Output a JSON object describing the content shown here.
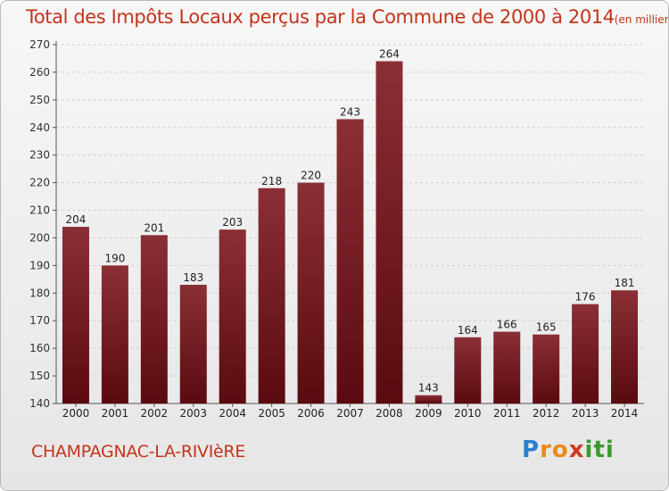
{
  "header": {
    "title": "Total des Impôts Locaux perçus par la Commune de 2000 à 2014",
    "unit": "(en milliers d'€)"
  },
  "footer": {
    "commune": "CHAMPAGNAC-LA-RIVIèRE",
    "logo_letters": [
      "P",
      "r",
      "o",
      "x",
      "i",
      "t",
      "i"
    ],
    "logo_colors": [
      "#2a7fcf",
      "#e88a1a",
      "#e88a1a",
      "#d23a1e",
      "#3a9a2e",
      "#3a9a2e",
      "#3a9a2e"
    ]
  },
  "colors": {
    "bar_top": "#8b2f36",
    "bar_bottom": "#5a0a10",
    "title": "#c4341b"
  },
  "chart_data": {
    "type": "bar",
    "title": "Total des Impôts Locaux perçus par la Commune de 2000 à 2014",
    "xlabel": "",
    "ylabel": "",
    "categories": [
      "2000",
      "2001",
      "2002",
      "2003",
      "2004",
      "2005",
      "2006",
      "2007",
      "2008",
      "2009",
      "2010",
      "2011",
      "2012",
      "2013",
      "2014"
    ],
    "values": [
      204,
      190,
      201,
      183,
      203,
      218,
      220,
      243,
      264,
      143,
      164,
      166,
      165,
      176,
      181
    ],
    "ylim": [
      140,
      270
    ],
    "yticks": [
      140,
      150,
      160,
      170,
      180,
      190,
      200,
      210,
      220,
      230,
      240,
      250,
      260,
      270
    ],
    "grid": true
  }
}
